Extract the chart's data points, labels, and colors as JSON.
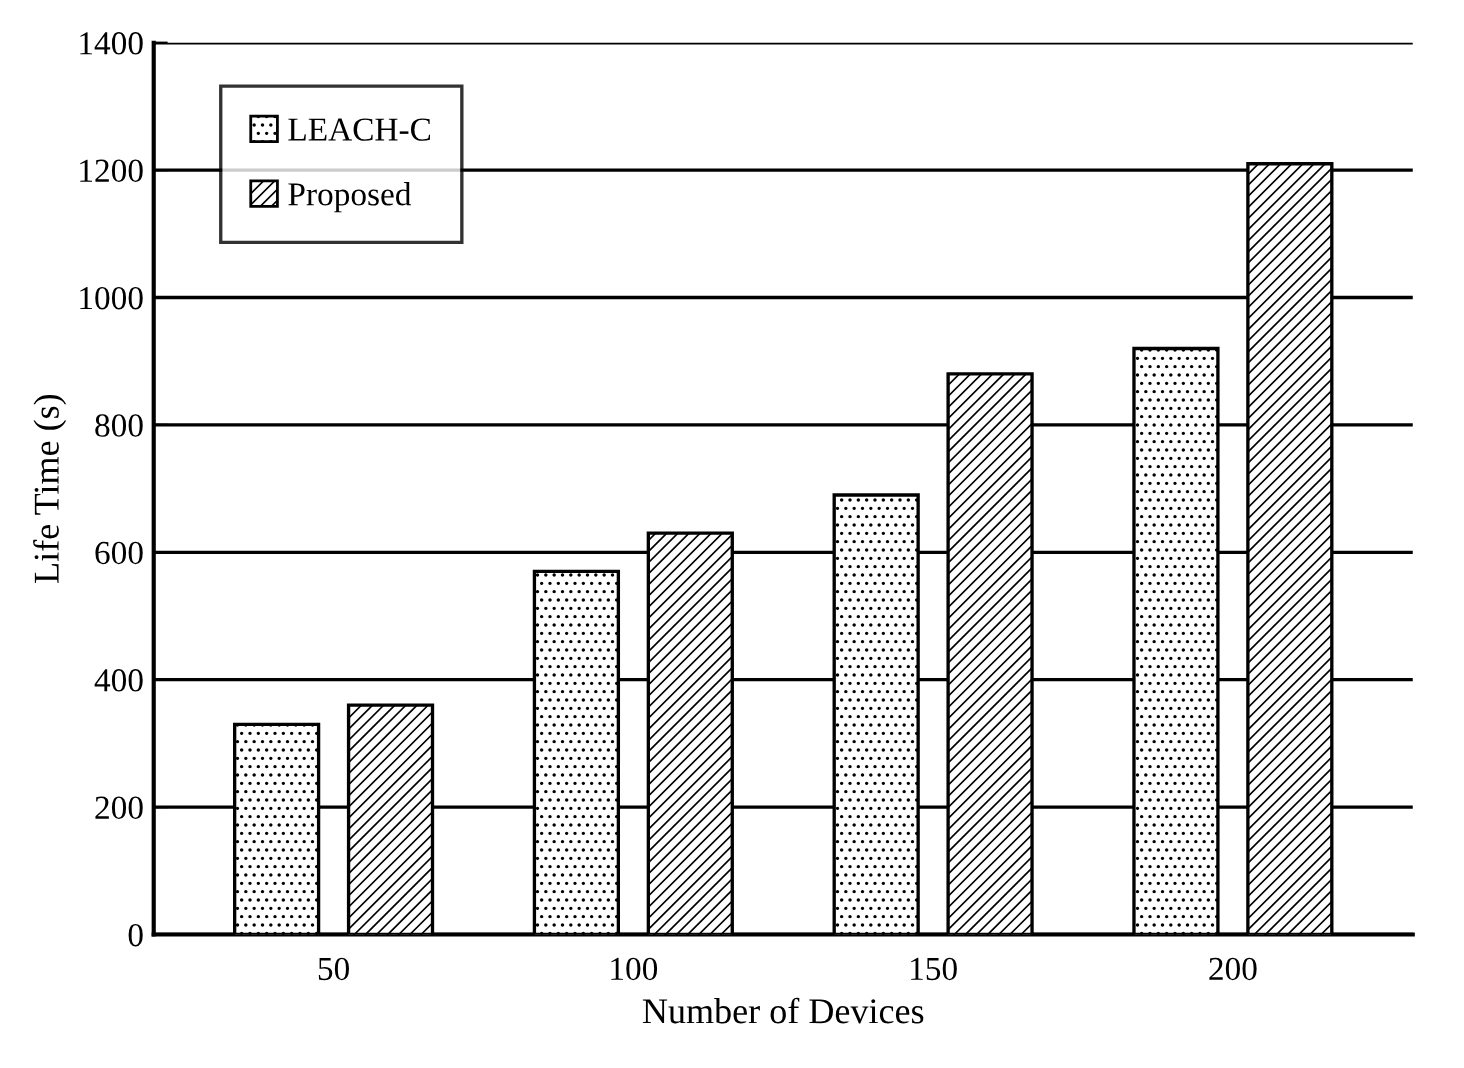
{
  "chart_data": {
    "type": "bar",
    "xlabel": "Number of Devices",
    "ylabel": "Life Time (s)",
    "categories": [
      "50",
      "100",
      "150",
      "200"
    ],
    "series": [
      {
        "name": "LEACH-C",
        "color": "#000000",
        "values": [
          330,
          570,
          690,
          920
        ]
      },
      {
        "name": "Proposed",
        "color": "#000000",
        "values": [
          360,
          630,
          880,
          1210
        ]
      }
    ],
    "ylim": [
      0,
      1400
    ],
    "yticks": [
      0,
      200,
      400,
      600,
      800,
      1000,
      1200,
      1400
    ],
    "grid": "y",
    "legend": "top left"
  }
}
